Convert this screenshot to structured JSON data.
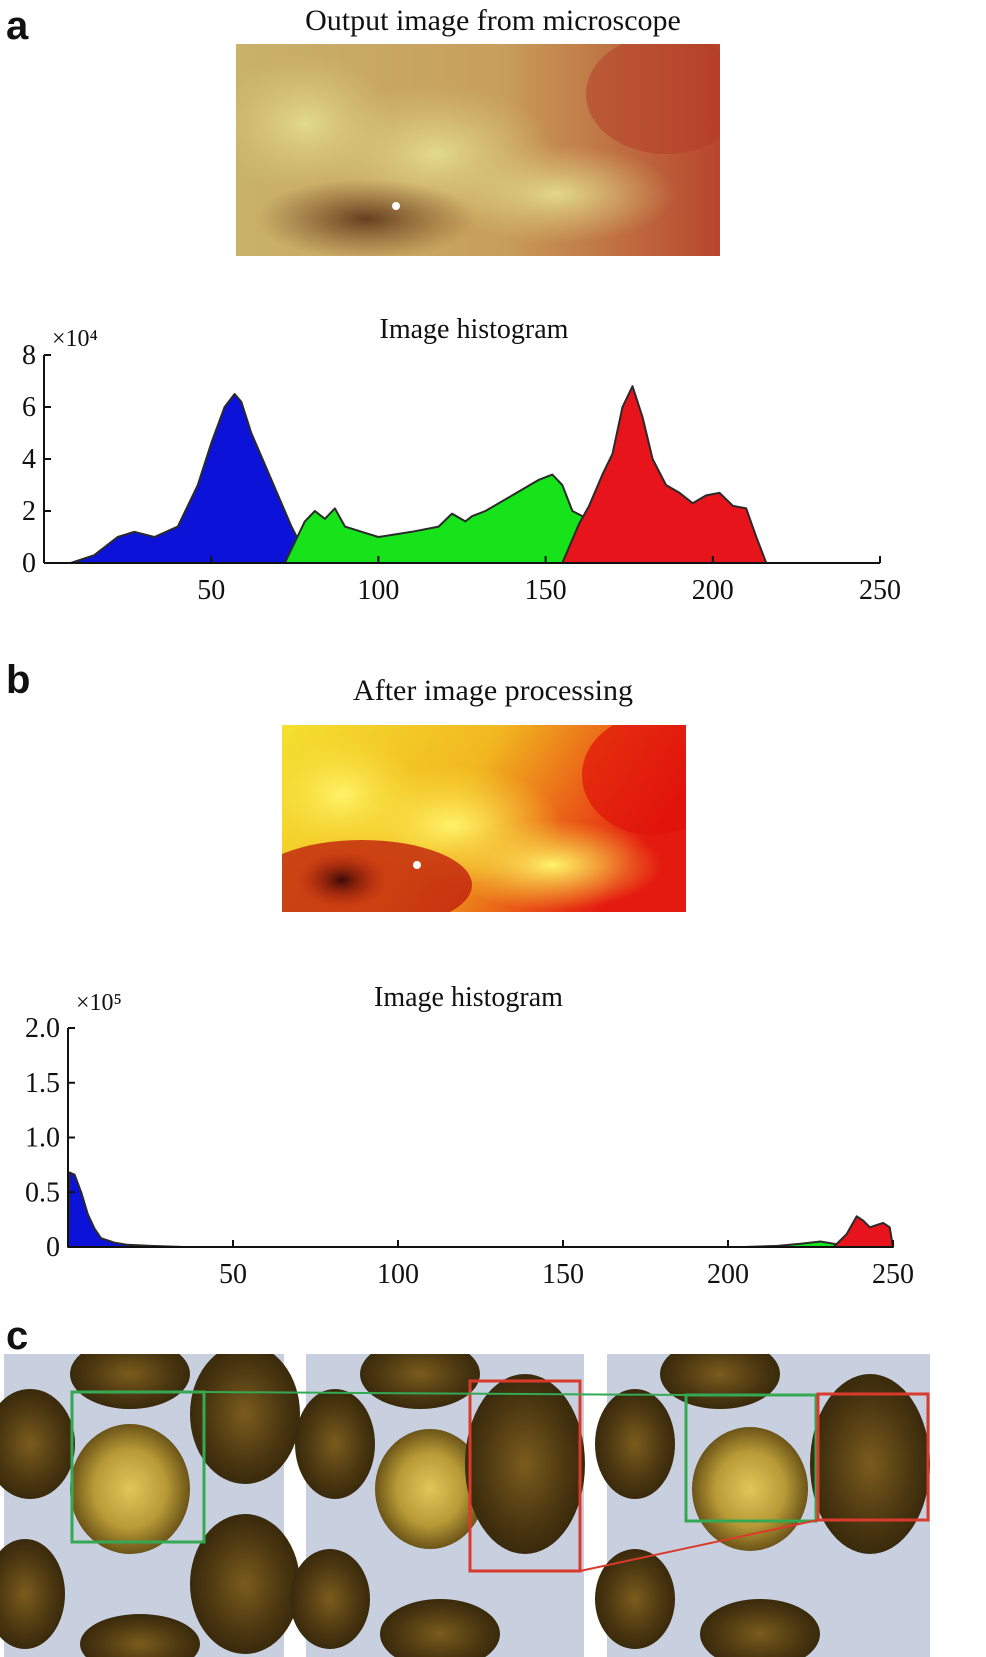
{
  "panels": {
    "a": {
      "letter": "a",
      "image_title": "Output image from microscope",
      "chart": {
        "title": "Image histogram",
        "exponent_label": "×10⁴",
        "x_ticks": [
          50,
          100,
          150,
          200,
          250
        ],
        "y_ticks": [
          0,
          2,
          4,
          6,
          8
        ]
      }
    },
    "b": {
      "letter": "b",
      "image_title": "After  image processing",
      "chart": {
        "title": "Image histogram",
        "exponent_label": "×10⁵",
        "x_ticks": [
          50,
          100,
          150,
          200,
          250
        ],
        "y_ticks": [
          "0",
          "0.5",
          "1.0",
          "1.5",
          "2.0"
        ]
      }
    },
    "c": {
      "letter": "c"
    }
  },
  "colors": {
    "red": "#e8141b",
    "green": "#16e31a",
    "blue": "#0d12d8",
    "outline": "#2a2a2a",
    "box_green": "#34a853",
    "box_red": "#d93a2b"
  },
  "chart_data": [
    {
      "type": "area",
      "title": "Image histogram",
      "xlabel": "",
      "ylabel": "",
      "x_range": [
        0,
        250
      ],
      "y_range": [
        0,
        8
      ],
      "y_scale_label": "×10⁴",
      "grid": false,
      "series": [
        {
          "color": "blue",
          "x": [
            8,
            15,
            22,
            27,
            33,
            40,
            46,
            50,
            54,
            57,
            59,
            62,
            66,
            70,
            74,
            78,
            80
          ],
          "y": [
            0,
            0.3,
            1.0,
            1.2,
            1.0,
            1.4,
            3.0,
            4.6,
            6.0,
            6.5,
            6.2,
            5.0,
            3.8,
            2.6,
            1.4,
            0.4,
            0
          ]
        },
        {
          "color": "green",
          "x": [
            72,
            78,
            81,
            84,
            87,
            90,
            95,
            100,
            110,
            118,
            122,
            126,
            128,
            132,
            140,
            148,
            152,
            155,
            158,
            164,
            170,
            175,
            180,
            184
          ],
          "y": [
            0,
            1.6,
            2.0,
            1.7,
            2.1,
            1.4,
            1.2,
            1.0,
            1.2,
            1.4,
            1.9,
            1.6,
            1.8,
            2.0,
            2.6,
            3.2,
            3.4,
            3.0,
            2.0,
            1.6,
            1.2,
            1.0,
            0.4,
            0
          ]
        },
        {
          "color": "red",
          "x": [
            155,
            160,
            163,
            167,
            170,
            173,
            176,
            179,
            182,
            186,
            190,
            194,
            198,
            202,
            206,
            210,
            213,
            216
          ],
          "y": [
            0,
            1.5,
            2.2,
            3.4,
            4.2,
            6.0,
            6.8,
            5.6,
            4.0,
            3.0,
            2.7,
            2.3,
            2.6,
            2.7,
            2.2,
            2.1,
            1.0,
            0
          ]
        }
      ]
    },
    {
      "type": "area",
      "title": "Image histogram",
      "xlabel": "",
      "ylabel": "",
      "x_range": [
        0,
        250
      ],
      "y_range": [
        0,
        2.0
      ],
      "y_scale_label": "×10⁵",
      "grid": false,
      "series": [
        {
          "color": "blue",
          "x": [
            0,
            0.5,
            2,
            4,
            6,
            8,
            10,
            14,
            18,
            25,
            35
          ],
          "y": [
            0,
            0.68,
            0.66,
            0.5,
            0.3,
            0.17,
            0.08,
            0.04,
            0.02,
            0.01,
            0
          ]
        },
        {
          "color": "green",
          "x": [
            205,
            215,
            222,
            228,
            232,
            236
          ],
          "y": [
            0,
            0.01,
            0.03,
            0.05,
            0.03,
            0
          ]
        },
        {
          "color": "red",
          "x": [
            232,
            236,
            239,
            241,
            243,
            245,
            247,
            249,
            250
          ],
          "y": [
            0,
            0.12,
            0.28,
            0.24,
            0.18,
            0.2,
            0.22,
            0.18,
            0
          ]
        }
      ]
    }
  ]
}
